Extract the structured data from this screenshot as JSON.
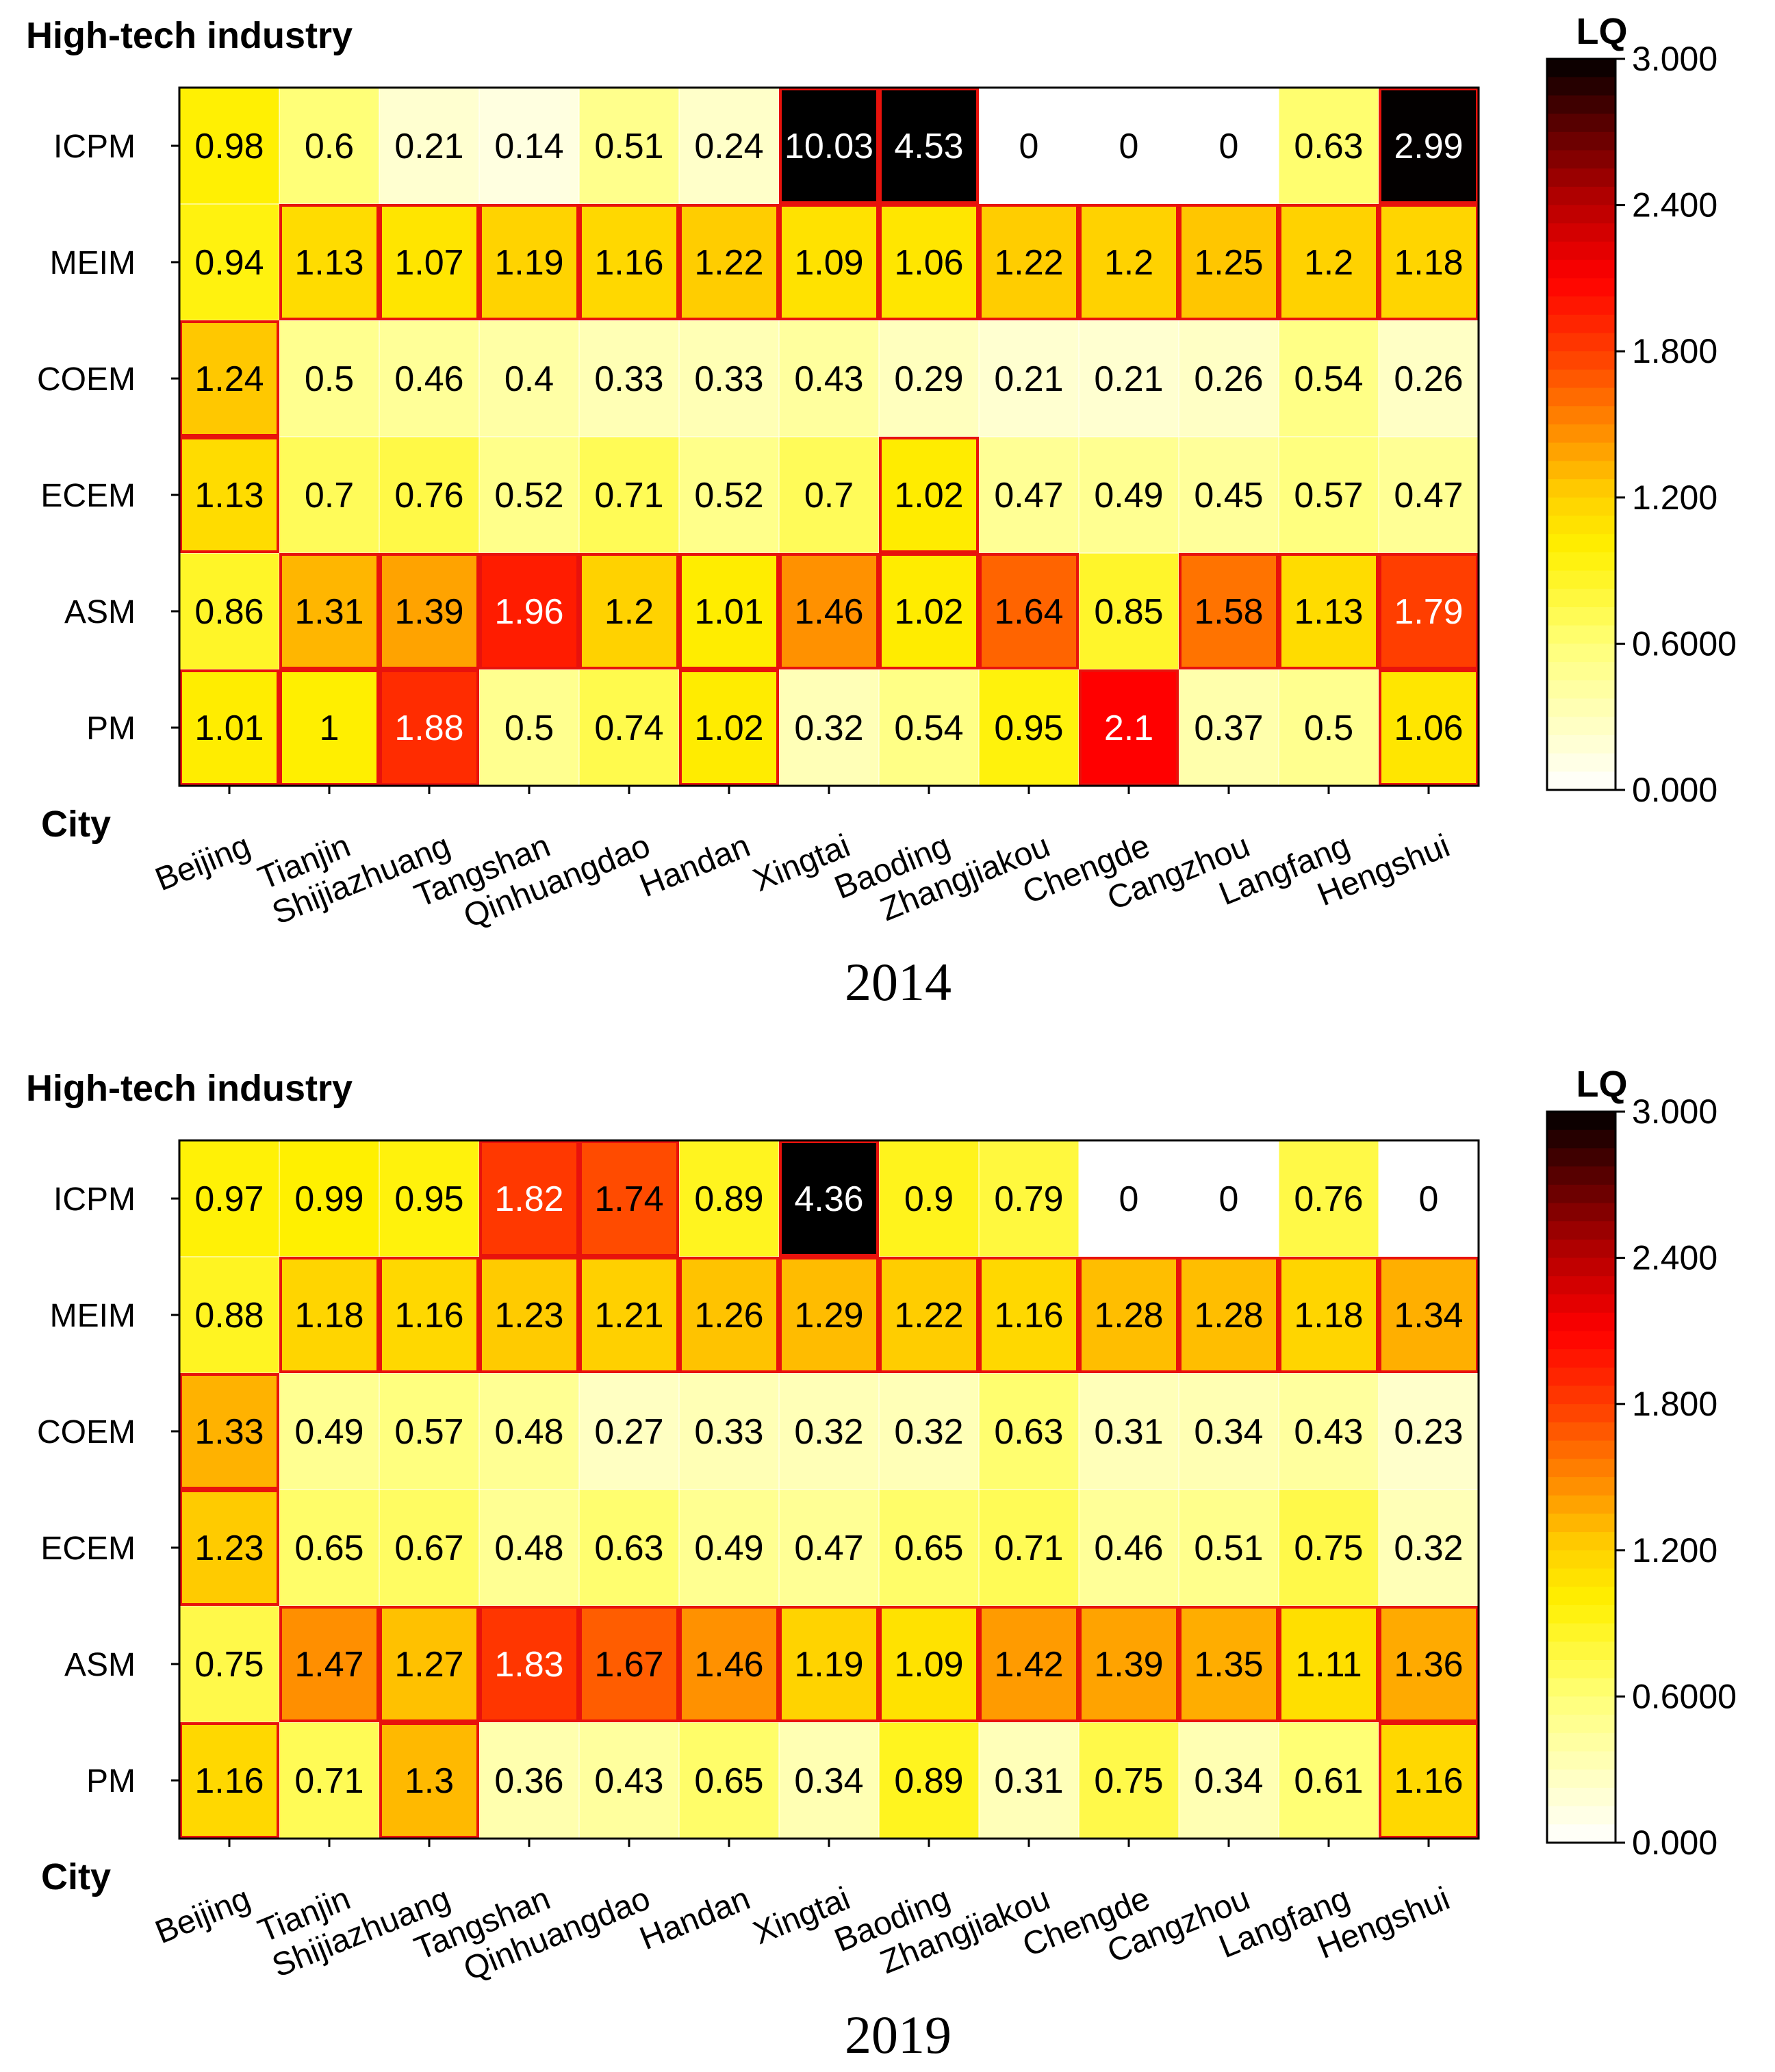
{
  "chart_data": [
    {
      "type": "heatmap",
      "title": "High-tech industry",
      "caption": "2014",
      "xlabel": "City",
      "colorbar_label": "LQ",
      "colorbar_ticks": [
        "3.000",
        "2.400",
        "1.800",
        "1.200",
        "0.6000",
        "0.000"
      ],
      "colorbar_range": [
        0,
        3
      ],
      "rows": [
        "ICPM",
        "MEIM",
        "COEM",
        "ECEM",
        "ASM",
        "PM"
      ],
      "columns": [
        "Beijing",
        "Tianjin",
        "Shijiazhuang",
        "Tangshan",
        "Qinhuangdao",
        "Handan",
        "Xingtai",
        "Baoding",
        "Zhangjiakou",
        "Chengde",
        "Cangzhou",
        "Langfang",
        "Hengshui"
      ],
      "values": [
        [
          "0.98",
          "0.6",
          "0.21",
          "0.14",
          "0.51",
          "0.24",
          "10.03",
          "4.53",
          "0",
          "0",
          "0",
          "0.63",
          "2.99"
        ],
        [
          "0.94",
          "1.13",
          "1.07",
          "1.19",
          "1.16",
          "1.22",
          "1.09",
          "1.06",
          "1.22",
          "1.2",
          "1.25",
          "1.2",
          "1.18"
        ],
        [
          "1.24",
          "0.5",
          "0.46",
          "0.4",
          "0.33",
          "0.33",
          "0.43",
          "0.29",
          "0.21",
          "0.21",
          "0.26",
          "0.54",
          "0.26"
        ],
        [
          "1.13",
          "0.7",
          "0.76",
          "0.52",
          "0.71",
          "0.52",
          "0.7",
          "1.02",
          "0.47",
          "0.49",
          "0.45",
          "0.57",
          "0.47"
        ],
        [
          "0.86",
          "1.31",
          "1.39",
          "1.96",
          "1.2",
          "1.01",
          "1.46",
          "1.02",
          "1.64",
          "0.85",
          "1.58",
          "1.13",
          "1.79"
        ],
        [
          "1.01",
          "1",
          "1.88",
          "0.5",
          "0.74",
          "1.02",
          "0.32",
          "0.54",
          "0.95",
          "2.1",
          "0.37",
          "0.5",
          "1.06"
        ]
      ]
    },
    {
      "type": "heatmap",
      "title": "High-tech industry",
      "caption": "2019",
      "xlabel": "City",
      "colorbar_label": "LQ",
      "colorbar_ticks": [
        "3.000",
        "2.400",
        "1.800",
        "1.200",
        "0.6000",
        "0.000"
      ],
      "colorbar_range": [
        0,
        3
      ],
      "rows": [
        "ICPM",
        "MEIM",
        "COEM",
        "ECEM",
        "ASM",
        "PM"
      ],
      "columns": [
        "Beijing",
        "Tianjin",
        "Shijiazhuang",
        "Tangshan",
        "Qinhuangdao",
        "Handan",
        "Xingtai",
        "Baoding",
        "Zhangjiakou",
        "Chengde",
        "Cangzhou",
        "Langfang",
        "Hengshui"
      ],
      "values": [
        [
          "0.97",
          "0.99",
          "0.95",
          "1.82",
          "1.74",
          "0.89",
          "4.36",
          "0.9",
          "0.79",
          "0",
          "0",
          "0.76",
          "0"
        ],
        [
          "0.88",
          "1.18",
          "1.16",
          "1.23",
          "1.21",
          "1.26",
          "1.29",
          "1.22",
          "1.16",
          "1.28",
          "1.28",
          "1.18",
          "1.34"
        ],
        [
          "1.33",
          "0.49",
          "0.57",
          "0.48",
          "0.27",
          "0.33",
          "0.32",
          "0.32",
          "0.63",
          "0.31",
          "0.34",
          "0.43",
          "0.23"
        ],
        [
          "1.23",
          "0.65",
          "0.67",
          "0.48",
          "0.63",
          "0.49",
          "0.47",
          "0.65",
          "0.71",
          "0.46",
          "0.51",
          "0.75",
          "0.32"
        ],
        [
          "0.75",
          "1.47",
          "1.27",
          "1.83",
          "1.67",
          "1.46",
          "1.19",
          "1.09",
          "1.42",
          "1.39",
          "1.35",
          "1.11",
          "1.36"
        ],
        [
          "1.16",
          "0.71",
          "1.3",
          "0.36",
          "0.43",
          "0.65",
          "0.34",
          "0.89",
          "0.31",
          "0.75",
          "0.34",
          "0.61",
          "1.16"
        ]
      ]
    }
  ]
}
